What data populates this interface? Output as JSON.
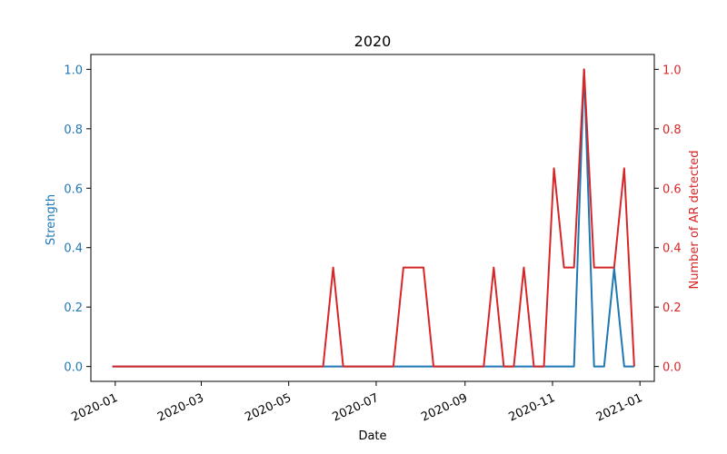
{
  "chart_data": {
    "type": "line",
    "title": "2020",
    "xlabel": "Date",
    "ylabel_left": "Strength",
    "ylabel_right": "Number of AR detected",
    "x_ticks": [
      "2020-01",
      "2020-03",
      "2020-05",
      "2020-07",
      "2020-09",
      "2020-11",
      "2021-01"
    ],
    "y_ticks": [
      "0.0",
      "0.2",
      "0.4",
      "0.6",
      "0.8",
      "1.0"
    ],
    "ylim_left": [
      -0.05,
      1.05
    ],
    "ylim_right": [
      -0.05,
      1.05
    ],
    "x_range": [
      "2019-12-15",
      "2021-01-11"
    ],
    "grid": false,
    "colors": {
      "left": "#1f77b4",
      "right": "#d62728",
      "axis": "#000000"
    },
    "series": [
      {
        "axis": "left",
        "x": [
          "2019-12-30",
          "2020-05-25",
          "2020-06-01",
          "2020-06-08",
          "2020-07-20",
          "2020-08-10",
          "2020-09-21",
          "2020-10-19",
          "2020-11-16",
          "2020-11-23",
          "2020-11-30",
          "2020-12-07",
          "2020-12-14",
          "2020-12-21",
          "2020-12-28"
        ],
        "y": [
          0,
          0,
          0,
          0,
          0,
          0,
          0,
          0,
          0,
          1.0,
          0,
          0,
          0.33,
          0,
          0
        ]
      },
      {
        "axis": "right",
        "x": [
          "2019-12-30",
          "2020-05-25",
          "2020-06-01",
          "2020-06-08",
          "2020-07-13",
          "2020-07-20",
          "2020-08-03",
          "2020-08-10",
          "2020-09-14",
          "2020-09-21",
          "2020-09-28",
          "2020-10-05",
          "2020-10-12",
          "2020-10-19",
          "2020-10-26",
          "2020-11-02",
          "2020-11-09",
          "2020-11-16",
          "2020-11-23",
          "2020-11-30",
          "2020-12-14",
          "2020-12-21",
          "2020-12-28"
        ],
        "y": [
          0,
          0,
          0.333,
          0,
          0,
          0.333,
          0.333,
          0,
          0,
          0.333,
          0,
          0,
          0.333,
          0,
          0,
          0.667,
          0.333,
          0.333,
          1.0,
          0.333,
          0.333,
          0.667,
          0
        ]
      }
    ]
  }
}
